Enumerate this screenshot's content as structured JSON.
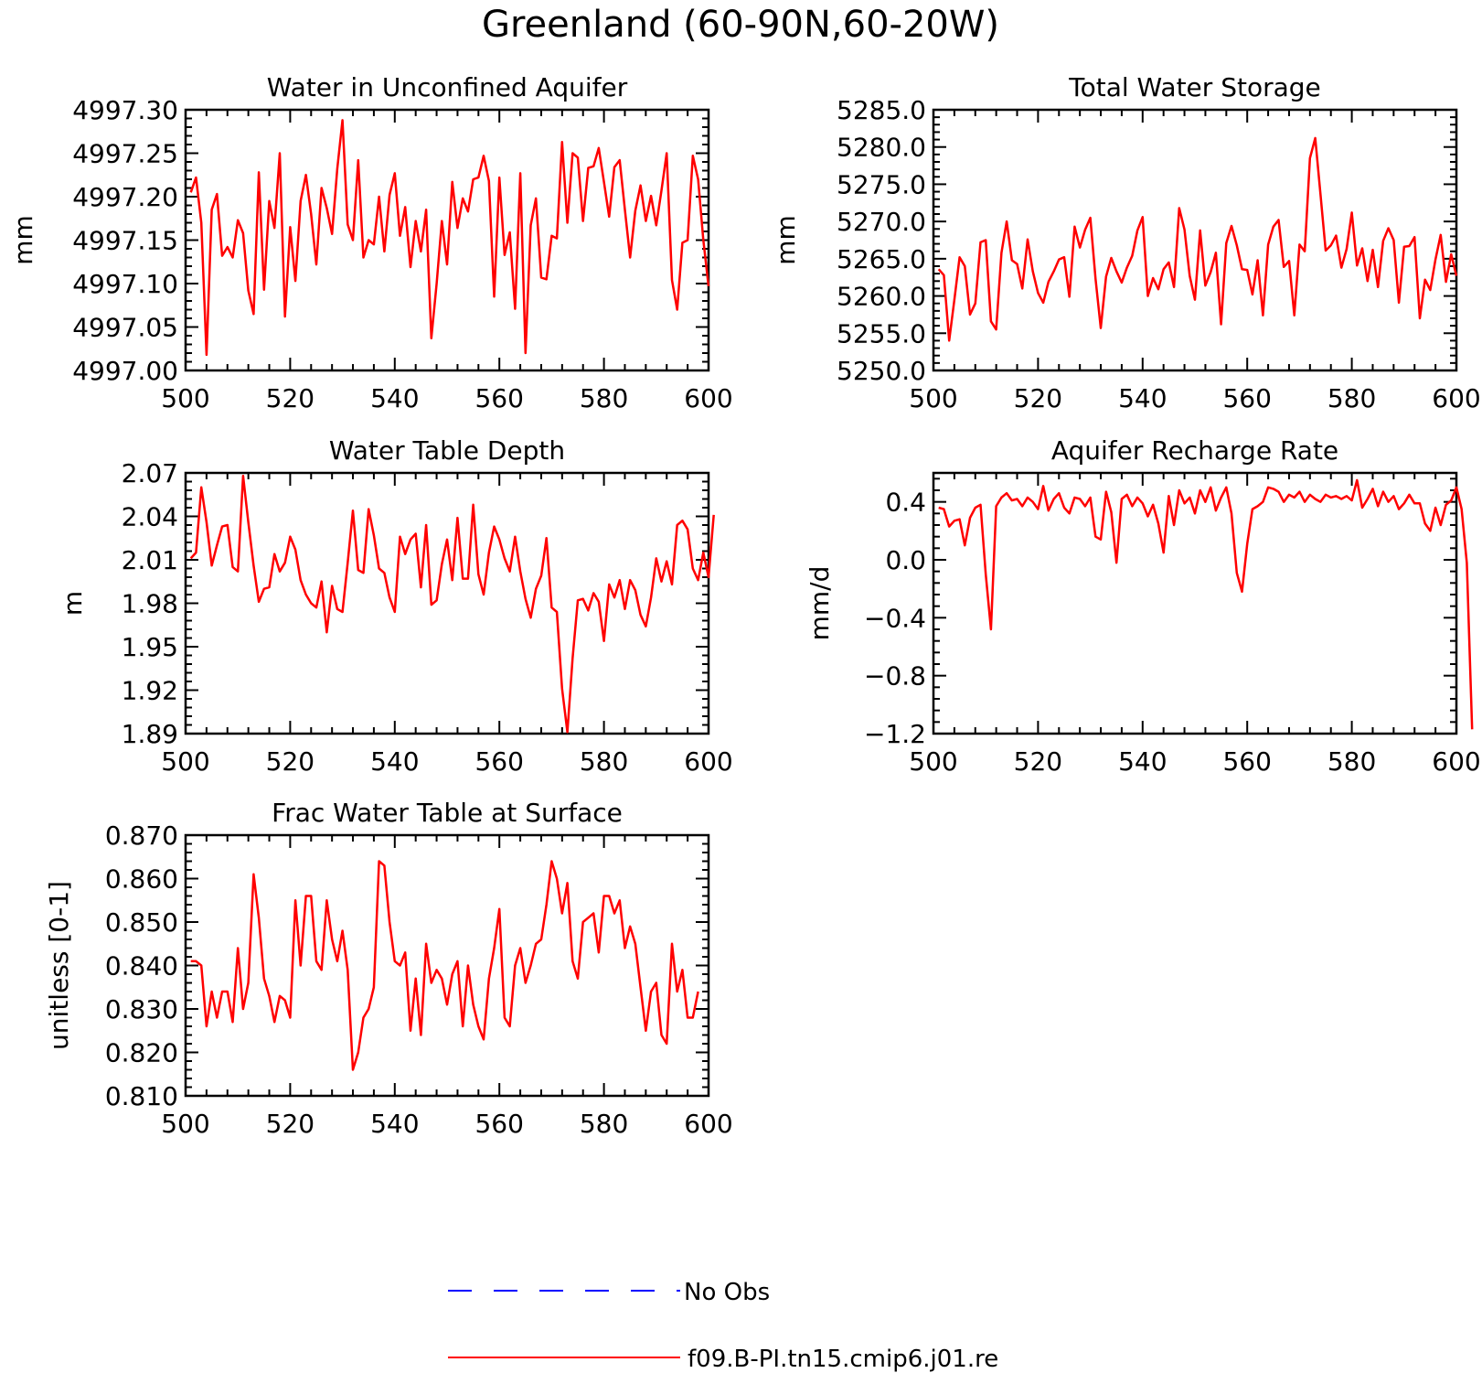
{
  "figure": {
    "title": "Greenland (60-90N,60-20W)"
  },
  "legend": [
    {
      "label": "No Obs",
      "color": "#0000ff",
      "dash": "dashed"
    },
    {
      "label": "f09.B-PI.tn15.cmip6.j01.re",
      "color": "#ff0000",
      "dash": "solid"
    }
  ],
  "chart_data": [
    {
      "type": "line",
      "title": "Water in Unconfined Aquifer",
      "xlabel": "",
      "ylabel": "mm",
      "xlim": [
        500,
        600
      ],
      "ylim": [
        4997.0,
        4997.3
      ],
      "xticks": [
        "500",
        "520",
        "540",
        "560",
        "580",
        "600"
      ],
      "yticks": [
        "4997.00",
        "4997.05",
        "4997.10",
        "4997.15",
        "4997.20",
        "4997.25",
        "4997.30"
      ],
      "x_start": 501,
      "x_step": 1,
      "series": [
        {
          "name": "f09.B-PI.tn15.cmip6.j01.re",
          "color": "#ff0000",
          "values": [
            4997.205,
            4997.222,
            4997.17,
            4997.018,
            4997.185,
            4997.203,
            4997.132,
            4997.142,
            4997.13,
            4997.173,
            4997.158,
            4997.092,
            4997.065,
            4997.228,
            4997.093,
            4997.195,
            4997.164,
            4997.25,
            4997.062,
            4997.165,
            4997.103,
            4997.195,
            4997.225,
            4997.18,
            4997.122,
            4997.21,
            4997.187,
            4997.157,
            4997.232,
            4997.288,
            4997.168,
            4997.15,
            4997.242,
            4997.13,
            4997.15,
            4997.145,
            4997.2,
            4997.137,
            4997.202,
            4997.227,
            4997.155,
            4997.188,
            4997.119,
            4997.172,
            4997.137,
            4997.185,
            4997.037,
            4997.1,
            4997.172,
            4997.122,
            4997.217,
            4997.164,
            4997.198,
            4997.183,
            4997.22,
            4997.222,
            4997.247,
            4997.218,
            4997.085,
            4997.222,
            4997.133,
            4997.159,
            4997.071,
            4997.227,
            4997.02,
            4997.167,
            4997.198,
            4997.107,
            4997.105,
            4997.155,
            4997.152,
            4997.263,
            4997.17,
            4997.25,
            4997.245,
            4997.172,
            4997.233,
            4997.235,
            4997.256,
            4997.217,
            4997.177,
            4997.234,
            4997.242,
            4997.185,
            4997.13,
            4997.184,
            4997.213,
            4997.172,
            4997.201,
            4997.167,
            4997.207,
            4997.25,
            4997.104,
            4997.07,
            4997.147,
            4997.15,
            4997.247,
            4997.22,
            4997.15,
            4997.097
          ]
        }
      ]
    },
    {
      "type": "line",
      "title": "Total Water Storage",
      "xlabel": "",
      "ylabel": "mm",
      "xlim": [
        500,
        600
      ],
      "ylim": [
        5250.0,
        5285.0
      ],
      "xticks": [
        "500",
        "520",
        "540",
        "560",
        "580",
        "600"
      ],
      "yticks": [
        "5250.0",
        "5255.0",
        "5260.0",
        "5265.0",
        "5270.0",
        "5275.0",
        "5280.0",
        "5285.0"
      ],
      "x_start": 501,
      "x_step": 1,
      "series": [
        {
          "name": "f09.B-PI.tn15.cmip6.j01.re",
          "color": "#ff0000",
          "values": [
            5263.6,
            5262.8,
            5254.0,
            5259.5,
            5265.2,
            5264.0,
            5257.5,
            5259.0,
            5267.2,
            5267.5,
            5256.6,
            5255.5,
            5265.8,
            5270.0,
            5264.8,
            5264.3,
            5261.0,
            5267.6,
            5263.3,
            5260.4,
            5259.1,
            5261.9,
            5263.3,
            5264.9,
            5265.2,
            5259.9,
            5269.3,
            5266.5,
            5268.9,
            5270.5,
            5262.3,
            5255.7,
            5262.6,
            5265.1,
            5263.3,
            5261.8,
            5263.8,
            5265.4,
            5268.8,
            5270.6,
            5260.0,
            5262.4,
            5260.9,
            5263.6,
            5264.5,
            5261.2,
            5271.8,
            5268.9,
            5262.7,
            5259.5,
            5268.8,
            5261.4,
            5263.2,
            5265.8,
            5256.2,
            5267.1,
            5269.4,
            5266.8,
            5263.6,
            5263.5,
            5260.2,
            5264.8,
            5257.4,
            5266.9,
            5269.3,
            5270.2,
            5263.9,
            5264.7,
            5257.4,
            5266.9,
            5266.0,
            5278.5,
            5281.2,
            5273.7,
            5266.1,
            5266.8,
            5268.1,
            5263.8,
            5266.3,
            5271.2,
            5264.1,
            5266.4,
            5262.0,
            5266.2,
            5261.2,
            5267.4,
            5269.1,
            5267.5,
            5259.1,
            5266.6,
            5266.7,
            5267.9,
            5257.0,
            5262.2,
            5260.8,
            5264.9,
            5268.2,
            5261.9,
            5265.6,
            5262.7
          ]
        }
      ]
    },
    {
      "type": "line",
      "title": "Water Table Depth",
      "xlabel": "",
      "ylabel": "m",
      "xlim": [
        500,
        600
      ],
      "ylim": [
        1.89,
        2.07
      ],
      "xticks": [
        "500",
        "520",
        "540",
        "560",
        "580",
        "600"
      ],
      "yticks": [
        "1.89",
        "1.92",
        "1.95",
        "1.98",
        "2.01",
        "2.04",
        "2.07"
      ],
      "x_start": 501,
      "x_step": 1,
      "series": [
        {
          "name": "f09.B-PI.tn15.cmip6.j01.re",
          "color": "#ff0000",
          "values": [
            2.011,
            2.015,
            2.06,
            2.036,
            2.006,
            2.02,
            2.033,
            2.034,
            2.005,
            2.002,
            2.068,
            2.036,
            2.006,
            1.981,
            1.99,
            1.991,
            2.014,
            2.002,
            2.008,
            2.026,
            2.017,
            1.996,
            1.986,
            1.98,
            1.977,
            1.995,
            1.96,
            1.992,
            1.976,
            1.974,
            2.008,
            2.044,
            2.003,
            2.001,
            2.045,
            2.027,
            2.004,
            2.001,
            1.984,
            1.974,
            2.026,
            2.014,
            2.024,
            2.028,
            1.991,
            2.034,
            1.979,
            1.982,
            2.007,
            2.024,
            1.996,
            2.039,
            1.997,
            1.997,
            2.048,
            2.0,
            1.986,
            2.015,
            2.033,
            2.024,
            2.011,
            2.002,
            2.026,
            2.002,
            1.983,
            1.97,
            1.99,
            1.999,
            2.025,
            1.977,
            1.974,
            1.921,
            1.891,
            1.942,
            1.982,
            1.983,
            1.975,
            1.987,
            1.981,
            1.954,
            1.993,
            1.984,
            1.996,
            1.976,
            1.996,
            1.989,
            1.972,
            1.964,
            1.984,
            2.011,
            1.995,
            2.009,
            1.993,
            2.034,
            2.037,
            2.031,
            2.004,
            1.996,
            2.015,
            1.998,
            2.041
          ]
        }
      ]
    },
    {
      "type": "line",
      "title": "Aquifer Recharge Rate",
      "xlabel": "",
      "ylabel": "mm/d",
      "xlim": [
        500,
        600
      ],
      "ylim": [
        -1.2,
        0.6
      ],
      "xticks": [
        "500",
        "520",
        "540",
        "560",
        "580",
        "600"
      ],
      "yticks": [
        "−1.2",
        "−0.8",
        "−0.4",
        "0.0",
        "0.4"
      ],
      "x_start": 501,
      "x_step": 1,
      "series": [
        {
          "name": "f09.B-PI.tn15.cmip6.j01.re",
          "color": "#ff0000",
          "values": [
            0.36,
            0.35,
            0.23,
            0.27,
            0.28,
            0.1,
            0.29,
            0.36,
            0.38,
            -0.1,
            -0.48,
            0.37,
            0.43,
            0.46,
            0.41,
            0.42,
            0.37,
            0.43,
            0.4,
            0.35,
            0.51,
            0.34,
            0.42,
            0.46,
            0.36,
            0.32,
            0.43,
            0.42,
            0.37,
            0.43,
            0.16,
            0.14,
            0.47,
            0.33,
            -0.02,
            0.42,
            0.45,
            0.37,
            0.43,
            0.39,
            0.3,
            0.38,
            0.25,
            0.05,
            0.44,
            0.24,
            0.48,
            0.39,
            0.43,
            0.32,
            0.48,
            0.4,
            0.5,
            0.34,
            0.43,
            0.5,
            0.32,
            -0.09,
            -0.22,
            0.11,
            0.35,
            0.37,
            0.4,
            0.5,
            0.49,
            0.47,
            0.4,
            0.45,
            0.43,
            0.47,
            0.4,
            0.45,
            0.42,
            0.4,
            0.45,
            0.43,
            0.44,
            0.42,
            0.44,
            0.41,
            0.55,
            0.36,
            0.42,
            0.49,
            0.37,
            0.47,
            0.4,
            0.44,
            0.35,
            0.39,
            0.45,
            0.39,
            0.39,
            0.25,
            0.2,
            0.36,
            0.24,
            0.38,
            0.41,
            0.5,
            0.35,
            -0.02,
            -1.17
          ]
        }
      ]
    },
    {
      "type": "line",
      "title": "Frac Water Table at Surface",
      "xlabel": "",
      "ylabel": "unitless [0-1]",
      "xlim": [
        500,
        600
      ],
      "ylim": [
        0.81,
        0.87
      ],
      "xticks": [
        "500",
        "520",
        "540",
        "560",
        "580",
        "600"
      ],
      "yticks": [
        "0.810",
        "0.820",
        "0.830",
        "0.840",
        "0.850",
        "0.860",
        "0.870"
      ],
      "x_start": 501,
      "x_step": 1,
      "series": [
        {
          "name": "f09.B-PI.tn15.cmip6.j01.re",
          "color": "#ff0000",
          "values": [
            0.841,
            0.841,
            0.84,
            0.826,
            0.834,
            0.828,
            0.834,
            0.834,
            0.827,
            0.844,
            0.83,
            0.836,
            0.861,
            0.851,
            0.837,
            0.833,
            0.827,
            0.833,
            0.832,
            0.828,
            0.855,
            0.84,
            0.856,
            0.856,
            0.841,
            0.839,
            0.855,
            0.846,
            0.841,
            0.848,
            0.839,
            0.816,
            0.82,
            0.828,
            0.83,
            0.835,
            0.864,
            0.863,
            0.85,
            0.841,
            0.84,
            0.843,
            0.825,
            0.837,
            0.824,
            0.845,
            0.836,
            0.839,
            0.837,
            0.831,
            0.838,
            0.841,
            0.826,
            0.84,
            0.831,
            0.826,
            0.823,
            0.837,
            0.844,
            0.853,
            0.828,
            0.826,
            0.84,
            0.844,
            0.836,
            0.84,
            0.845,
            0.846,
            0.854,
            0.864,
            0.86,
            0.852,
            0.859,
            0.841,
            0.837,
            0.85,
            0.851,
            0.852,
            0.843,
            0.856,
            0.856,
            0.852,
            0.855,
            0.844,
            0.849,
            0.845,
            0.835,
            0.825,
            0.834,
            0.836,
            0.824,
            0.822,
            0.845,
            0.834,
            0.839,
            0.828,
            0.828,
            0.834
          ]
        }
      ]
    }
  ]
}
